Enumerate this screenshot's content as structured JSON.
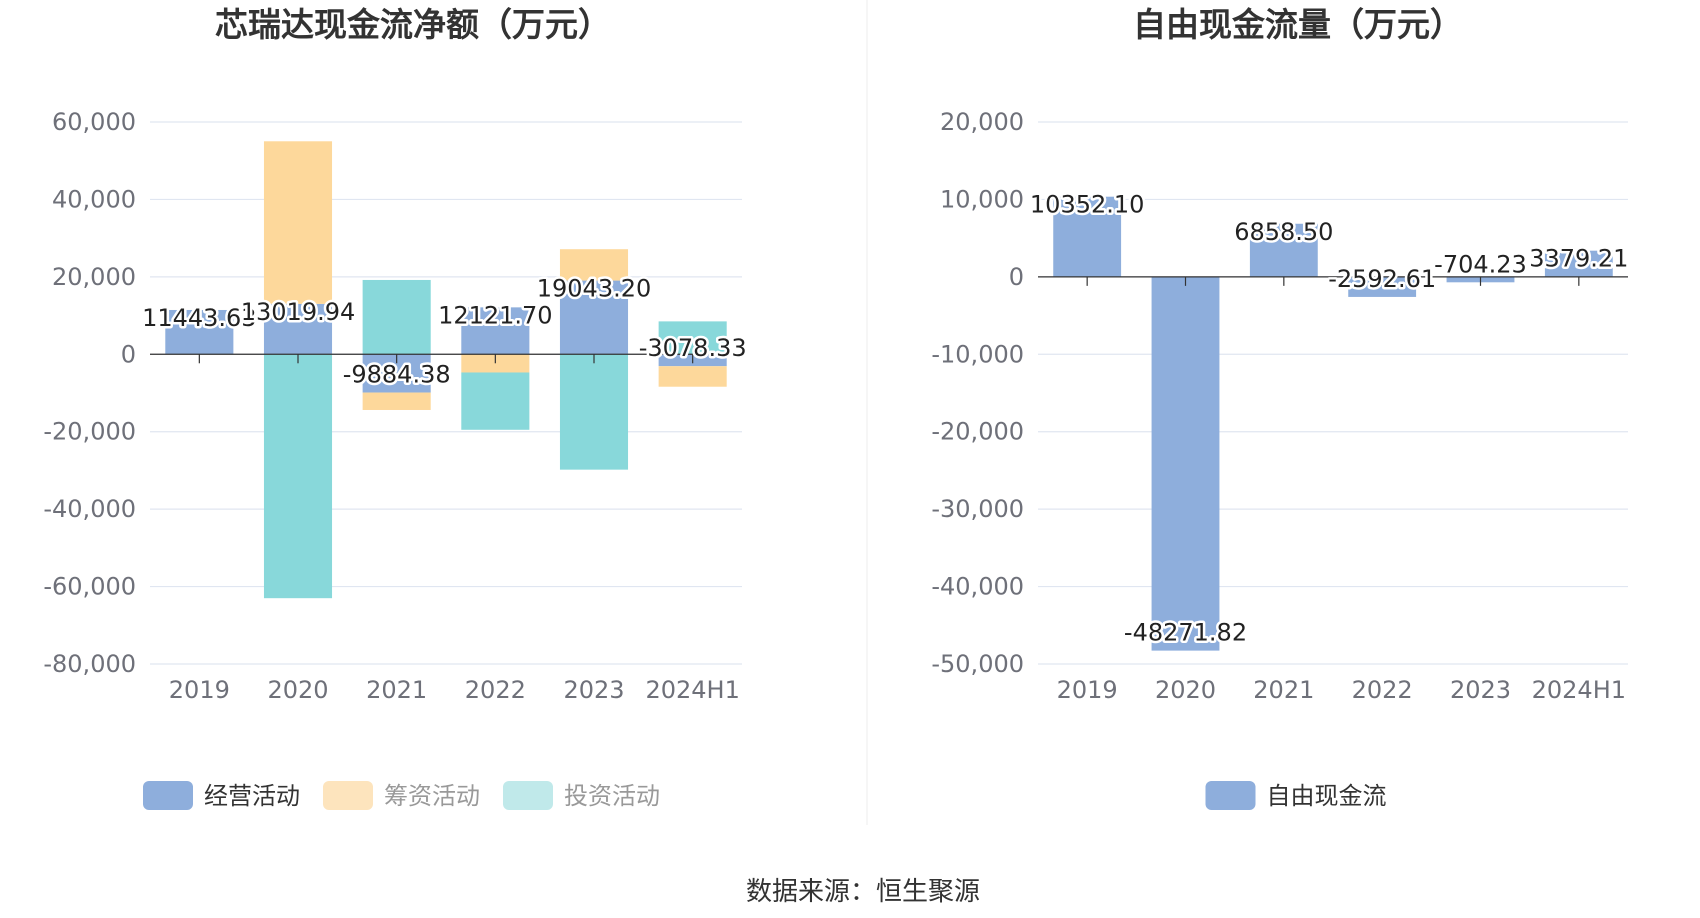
{
  "chart_data": [
    {
      "type": "bar",
      "stacked": true,
      "title": "芯瑞达现金流净额（万元）",
      "categories": [
        "2019",
        "2020",
        "2021",
        "2022",
        "2023",
        "2024H1"
      ],
      "yticks": [
        "60,000",
        "40,000",
        "20,000",
        "0",
        "-20,000",
        "-40,000",
        "-60,000",
        "-80,000"
      ],
      "ylim": [
        -80000,
        60000
      ],
      "grid": true,
      "legend_position": "bottom",
      "series": [
        {
          "name": "经营活动",
          "color": "#8eaedc",
          "values": [
            11443.63,
            13019.94,
            -9884.38,
            12121.7,
            19043.2,
            -3078.33
          ]
        },
        {
          "name": "筹资活动",
          "color": "#fdd89b",
          "values": [
            0,
            42000,
            -4500,
            -4700,
            8100,
            -5300
          ]
        },
        {
          "name": "投资活动",
          "color": "#88d8da",
          "values": [
            0,
            -63000,
            19200,
            -14800,
            -29800,
            8500
          ]
        }
      ],
      "data_labels": [
        "11443.63",
        "13019.94",
        "-9884.38",
        "12121.70",
        "19043.20",
        "-3078.33"
      ]
    },
    {
      "type": "bar",
      "title": "自由现金流量（万元）",
      "categories": [
        "2019",
        "2020",
        "2021",
        "2022",
        "2023",
        "2024H1"
      ],
      "yticks": [
        "20,000",
        "10,000",
        "0",
        "-10,000",
        "-20,000",
        "-30,000",
        "-40,000",
        "-50,000"
      ],
      "ylim": [
        -50000,
        20000
      ],
      "grid": true,
      "legend_position": "bottom",
      "series": [
        {
          "name": "自由现金流",
          "color": "#8eaedc",
          "values": [
            10352.1,
            -48271.82,
            6858.5,
            -2592.61,
            -704.23,
            3379.21
          ]
        }
      ],
      "data_labels": [
        "10352.10",
        "-48271.82",
        "6858.50",
        "-2592.61",
        "-704.23",
        "3379.21"
      ]
    }
  ],
  "legend1": [
    {
      "label": "经营活动",
      "color": "#8eaedc",
      "text_color": "#333333"
    },
    {
      "label": "筹资活动",
      "color": "#fde4bd",
      "text_color": "#999999"
    },
    {
      "label": "投资活动",
      "color": "#c0e9ea",
      "text_color": "#999999"
    }
  ],
  "legend2": [
    {
      "label": "自由现金流",
      "color": "#8eaedc",
      "text_color": "#333333"
    }
  ],
  "source": "数据来源：恒生聚源",
  "colors": {
    "grid": "#e0e6f1",
    "axis": "#333333",
    "divider": "#eeeeee"
  }
}
